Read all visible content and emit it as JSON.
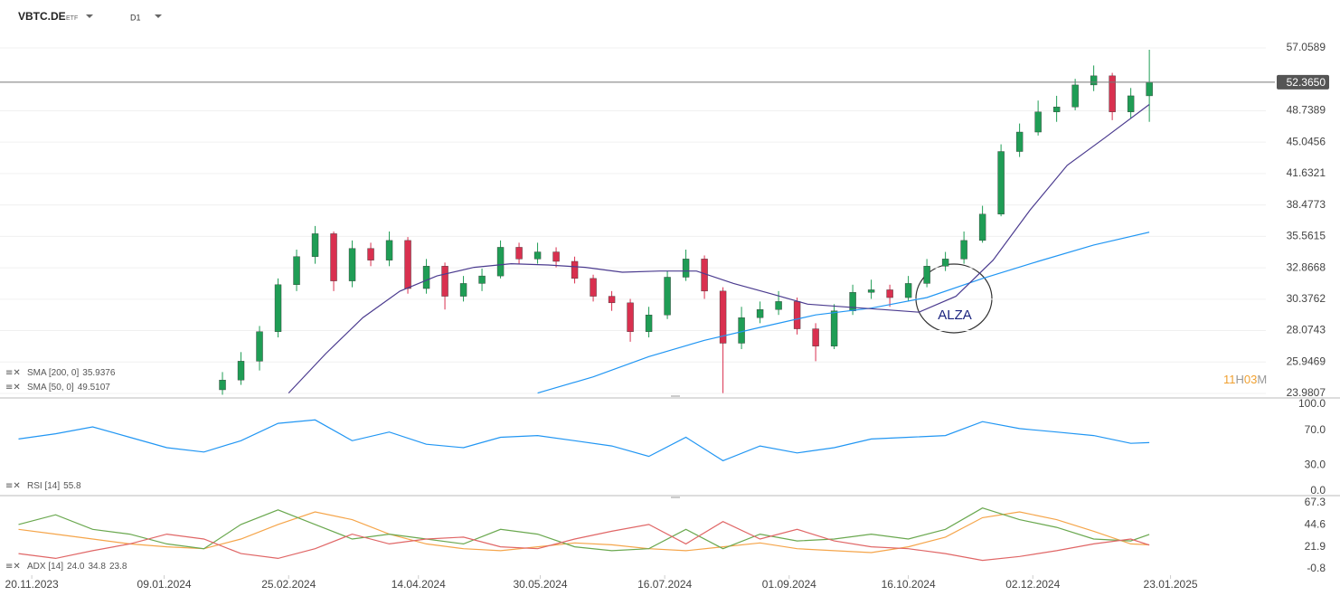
{
  "chart_data": [
    {
      "type": "candlestick",
      "symbol": "VBTC.DE",
      "instrument_type": "ETF",
      "timeframe": "D1",
      "log_scale": true,
      "grid": true,
      "xlim": [
        "08.11.2023",
        "28.02.2025"
      ],
      "xticks": [
        "20.11.2023",
        "09.01.2024",
        "25.02.2024",
        "14.04.2024",
        "30.05.2024",
        "16.07.2024",
        "01.09.2024",
        "16.10.2024",
        "02.12.2024",
        "23.01.2025"
      ],
      "ylim": [
        23.71,
        64.35
      ],
      "yticks": [
        57.0589,
        48.7389,
        45.0456,
        41.6321,
        38.4773,
        35.5615,
        32.8668,
        30.3762,
        28.0743,
        25.9469,
        23.9807
      ],
      "up_color": "#1f9d55",
      "down_color": "#d9304f",
      "x": [
        "31.01.2024",
        "07.02.2024",
        "14.02.2024",
        "21.02.2024",
        "28.02.2024",
        "06.03.2024",
        "13.03.2024",
        "20.03.2024",
        "27.03.2024",
        "03.04.2024",
        "10.04.2024",
        "17.04.2024",
        "24.04.2024",
        "01.05.2024",
        "08.05.2024",
        "15.05.2024",
        "22.05.2024",
        "29.05.2024",
        "05.06.2024",
        "12.06.2024",
        "19.06.2024",
        "26.06.2024",
        "03.07.2024",
        "10.07.2024",
        "17.07.2024",
        "24.07.2024",
        "31.07.2024",
        "07.08.2024",
        "14.08.2024",
        "21.08.2024",
        "28.08.2024",
        "04.09.2024",
        "11.09.2024",
        "18.09.2024",
        "25.09.2024",
        "02.10.2024",
        "09.10.2024",
        "16.10.2024",
        "23.10.2024",
        "30.10.2024",
        "06.11.2024",
        "13.11.2024",
        "20.11.2024",
        "27.11.2024",
        "04.12.2024",
        "11.12.2024",
        "18.12.2024",
        "25.12.2024",
        "01.01.2025",
        "08.01.2025",
        "15.01.2025"
      ],
      "open": [
        24.2,
        24.8,
        26.0,
        28.0,
        31.5,
        33.8,
        35.8,
        31.8,
        34.5,
        33.5,
        35.2,
        31.2,
        33.0,
        30.6,
        31.6,
        32.2,
        34.6,
        33.6,
        34.2,
        33.4,
        32.0,
        30.6,
        30.1,
        28.0,
        29.2,
        32.1,
        33.6,
        31.0,
        27.2,
        29.0,
        29.6,
        30.2,
        28.2,
        27.0,
        29.5,
        30.9,
        31.1,
        30.5,
        31.6,
        33.0,
        33.6,
        35.2,
        37.6,
        44.0,
        46.2,
        48.6,
        49.2,
        52.0,
        53.2,
        48.6,
        50.6
      ],
      "high": [
        25.3,
        26.6,
        28.4,
        32.0,
        34.4,
        36.5,
        36.0,
        35.2,
        35.0,
        36.0,
        35.5,
        33.6,
        33.3,
        32.2,
        32.8,
        35.2,
        35.0,
        35.0,
        34.6,
        33.8,
        32.3,
        31.0,
        30.4,
        29.8,
        32.6,
        34.4,
        33.9,
        31.3,
        29.8,
        30.2,
        31.0,
        30.5,
        28.6,
        30.0,
        31.5,
        31.9,
        31.5,
        32.2,
        33.6,
        34.2,
        36.0,
        38.4,
        44.8,
        47.2,
        50.0,
        50.6,
        52.8,
        54.6,
        53.6,
        51.6,
        56.8
      ],
      "low": [
        23.9,
        24.5,
        25.4,
        27.6,
        31.0,
        33.2,
        31.0,
        31.3,
        33.0,
        33.0,
        30.8,
        30.8,
        29.6,
        30.2,
        31.0,
        32.0,
        33.2,
        33.2,
        32.9,
        31.6,
        30.2,
        29.5,
        27.3,
        27.6,
        28.9,
        31.8,
        30.4,
        24.0,
        26.8,
        28.6,
        29.2,
        27.8,
        26.0,
        26.8,
        29.2,
        30.4,
        29.8,
        30.2,
        31.3,
        32.6,
        33.2,
        35.0,
        37.4,
        43.4,
        45.8,
        47.4,
        48.8,
        51.2,
        47.6,
        47.8,
        47.4
      ],
      "close": [
        24.8,
        26.0,
        28.0,
        31.5,
        33.8,
        35.8,
        31.8,
        34.5,
        33.5,
        35.2,
        31.2,
        33.0,
        30.6,
        31.6,
        32.2,
        34.6,
        33.6,
        34.2,
        33.4,
        32.0,
        30.6,
        30.1,
        28.0,
        29.2,
        32.1,
        33.6,
        31.0,
        27.2,
        29.0,
        29.6,
        30.2,
        28.2,
        27.0,
        29.5,
        30.9,
        31.1,
        30.5,
        31.6,
        33.0,
        33.6,
        35.2,
        37.6,
        44.0,
        46.2,
        48.6,
        49.2,
        52.0,
        53.2,
        48.6,
        50.6,
        52.365
      ],
      "last_price": {
        "value": 52.365,
        "label": "52.3650"
      },
      "countdown": [
        "11",
        "H",
        "03",
        "M"
      ],
      "annotation": "ALZA",
      "overlays": [
        {
          "name": "SMA [200,  0]",
          "value": 35.9376,
          "color": "#2196f3",
          "x": [
            "29.05.2024",
            "19.06.2024",
            "10.07.2024",
            "31.07.2024",
            "21.08.2024",
            "11.09.2024",
            "02.10.2024",
            "23.10.2024",
            "13.11.2024",
            "04.12.2024",
            "25.12.2024",
            "15.01.2025"
          ],
          "values": [
            24.0,
            25.0,
            26.3,
            27.4,
            28.3,
            29.2,
            29.7,
            30.5,
            32.0,
            33.4,
            34.8,
            35.9376
          ]
        },
        {
          "name": "SMA [50,  0]",
          "value": 49.5107,
          "color": "#4b3b8f",
          "x": [
            "25.02.2024",
            "10.03.2024",
            "24.03.2024",
            "07.04.2024",
            "21.04.2024",
            "05.05.2024",
            "19.05.2024",
            "02.06.2024",
            "16.06.2024",
            "30.06.2024",
            "14.07.2024",
            "28.07.2024",
            "11.08.2024",
            "25.08.2024",
            "08.09.2024",
            "22.09.2024",
            "06.10.2024",
            "20.10.2024",
            "03.11.2024",
            "17.11.2024",
            "01.12.2024",
            "15.12.2024",
            "29.12.2024",
            "15.01.2025"
          ],
          "values": [
            24.0,
            26.5,
            29.0,
            31.0,
            32.2,
            32.9,
            33.2,
            33.1,
            32.9,
            32.5,
            32.6,
            32.6,
            31.6,
            30.8,
            30.0,
            29.8,
            29.6,
            29.4,
            30.6,
            33.5,
            38.0,
            42.5,
            45.5,
            49.5107
          ]
        }
      ]
    },
    {
      "type": "line",
      "name": "RSI [14]",
      "color": "#2196f3",
      "xlim": [
        "08.11.2023",
        "28.02.2025"
      ],
      "ylim": [
        0,
        100
      ],
      "yticks": [
        {
          "value": 100,
          "label": "100.0"
        },
        {
          "value": 70,
          "label": "70.0"
        },
        {
          "value": 30,
          "label": "30.0"
        },
        {
          "value": 0,
          "label": "0.0"
        }
      ],
      "x": [
        "15.11.2023",
        "29.11.2023",
        "13.12.2023",
        "27.12.2023",
        "10.01.2024",
        "24.01.2024",
        "07.02.2024",
        "21.02.2024",
        "06.03.2024",
        "20.03.2024",
        "03.04.2024",
        "17.04.2024",
        "01.05.2024",
        "15.05.2024",
        "29.05.2024",
        "12.06.2024",
        "26.06.2024",
        "10.07.2024",
        "24.07.2024",
        "07.08.2024",
        "21.08.2024",
        "04.09.2024",
        "18.09.2024",
        "02.10.2024",
        "16.10.2024",
        "30.10.2024",
        "13.11.2024",
        "27.11.2024",
        "11.12.2024",
        "25.12.2024",
        "08.01.2025",
        "15.01.2025"
      ],
      "values": [
        60,
        66,
        74,
        62,
        50,
        45,
        58,
        78,
        82,
        58,
        68,
        54,
        50,
        62,
        64,
        58,
        52,
        40,
        62,
        35,
        52,
        44,
        50,
        60,
        62,
        64,
        80,
        72,
        68,
        64,
        55,
        55.8
      ]
    },
    {
      "type": "line",
      "name": "ADX [14]",
      "xlim": [
        "08.11.2023",
        "28.02.2025"
      ],
      "ylim": [
        -7.3,
        72.9
      ],
      "yticks": [
        67.3,
        44.6,
        21.9,
        -0.8
      ],
      "x": [
        "15.11.2023",
        "29.11.2023",
        "13.12.2023",
        "27.12.2023",
        "10.01.2024",
        "24.01.2024",
        "07.02.2024",
        "21.02.2024",
        "06.03.2024",
        "20.03.2024",
        "03.04.2024",
        "17.04.2024",
        "01.05.2024",
        "15.05.2024",
        "29.05.2024",
        "12.06.2024",
        "26.06.2024",
        "10.07.2024",
        "24.07.2024",
        "07.08.2024",
        "21.08.2024",
        "04.09.2024",
        "18.09.2024",
        "02.10.2024",
        "16.10.2024",
        "30.10.2024",
        "13.11.2024",
        "27.11.2024",
        "11.12.2024",
        "25.12.2024",
        "08.01.2025",
        "15.01.2025"
      ],
      "series": [
        {
          "color": "#f5a54a",
          "values": [
            40,
            35,
            30,
            25,
            22,
            20,
            30,
            45,
            58,
            50,
            35,
            25,
            20,
            18,
            22,
            26,
            24,
            20,
            18,
            22,
            26,
            20,
            18,
            16,
            22,
            32,
            52,
            58,
            50,
            38,
            25,
            24.0
          ],
          "value_labels": [
            null,
            null,
            null,
            null,
            null,
            null,
            null,
            null,
            null,
            null,
            null,
            null,
            null,
            null,
            null,
            null,
            null,
            null,
            null,
            null,
            null,
            null,
            null,
            null,
            null,
            null,
            null,
            null,
            null,
            null,
            null,
            "24.0"
          ]
        },
        {
          "color": "#6aa84f",
          "values": [
            45,
            55,
            40,
            35,
            25,
            20,
            45,
            60,
            45,
            30,
            35,
            30,
            25,
            40,
            35,
            22,
            18,
            20,
            40,
            20,
            35,
            28,
            30,
            35,
            30,
            40,
            62,
            50,
            42,
            30,
            28,
            34.8
          ]
        },
        {
          "color": "#e06666",
          "values": [
            15,
            10,
            18,
            25,
            35,
            30,
            15,
            10,
            20,
            35,
            25,
            30,
            32,
            22,
            20,
            30,
            38,
            45,
            25,
            48,
            30,
            40,
            28,
            22,
            20,
            15,
            8,
            12,
            18,
            25,
            30,
            23.8
          ]
        }
      ]
    }
  ]
}
